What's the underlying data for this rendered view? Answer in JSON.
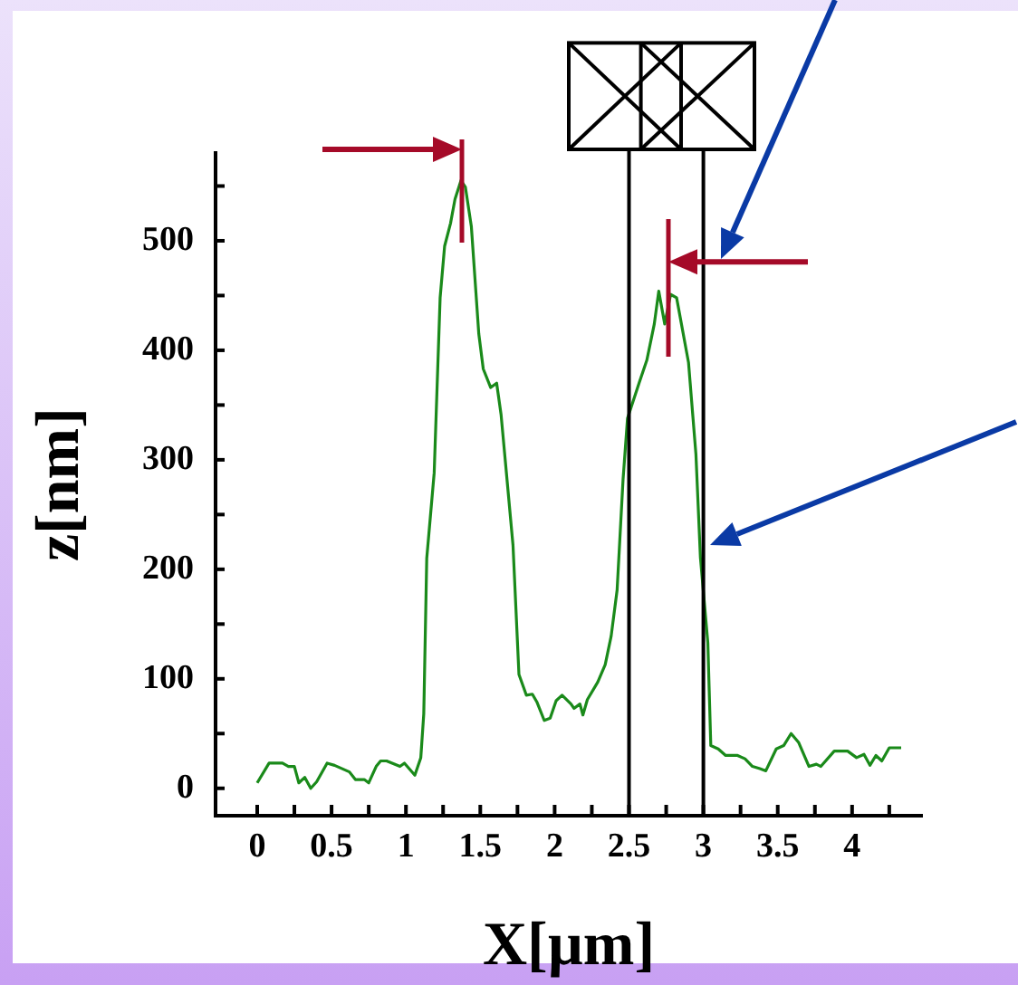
{
  "chart_data": {
    "type": "line",
    "xlabel": "X[µm]",
    "ylabel": "z[nm]",
    "xlim": [
      -0.28,
      4.47
    ],
    "ylim": [
      -25,
      580
    ],
    "xticks": [
      0,
      {
        "value": 0.25,
        "label": null
      },
      0.5,
      {
        "value": 0.75,
        "label": null
      },
      1,
      {
        "value": 1.25,
        "label": null
      },
      1.5,
      {
        "value": 1.75,
        "label": null
      },
      2,
      {
        "value": 2.25,
        "label": null
      },
      2.5,
      {
        "value": 2.75,
        "label": null
      },
      3,
      {
        "value": 3.25,
        "label": null
      },
      3.5,
      {
        "value": 3.75,
        "label": null
      },
      4,
      {
        "value": 4.25,
        "label": null
      }
    ],
    "yticks": [
      0,
      {
        "value": 50,
        "label": null
      },
      100,
      {
        "value": 150,
        "label": null
      },
      200,
      {
        "value": 250,
        "label": null
      },
      300,
      {
        "value": 350,
        "label": null
      },
      400,
      {
        "value": 450,
        "label": null
      },
      500,
      {
        "value": 550,
        "label": null
      }
    ],
    "grid": false,
    "legend": false,
    "marker": "none",
    "line_style": "solid",
    "ref_lines": [
      {
        "axis": "x",
        "value": 2.5,
        "color": "#000000"
      },
      {
        "axis": "x",
        "value": 3,
        "color": "#000000"
      }
    ],
    "series": [
      {
        "color": "#1a8a1a",
        "x": [
          0.0,
          0.08,
          0.17,
          0.21,
          0.25,
          0.28,
          0.32,
          0.36,
          0.4,
          0.47,
          0.52,
          0.62,
          0.66,
          0.72,
          0.75,
          0.8,
          0.83,
          0.87,
          0.96,
          0.99,
          1.06,
          1.1,
          1.12,
          1.14,
          1.19,
          1.23,
          1.26,
          1.3,
          1.33,
          1.37,
          1.4,
          1.44,
          1.49,
          1.52,
          1.57,
          1.61,
          1.64,
          1.72,
          1.76,
          1.81,
          1.85,
          1.88,
          1.93,
          1.97,
          2.01,
          2.05,
          2.11,
          2.13,
          2.17,
          2.19,
          2.22,
          2.29,
          2.34,
          2.38,
          2.42,
          2.46,
          2.49,
          2.57,
          2.62,
          2.67,
          2.7,
          2.74,
          2.78,
          2.82,
          2.9,
          2.95,
          2.98,
          3.03,
          3.05,
          3.1,
          3.15,
          3.23,
          3.28,
          3.33,
          3.38,
          3.42,
          3.49,
          3.54,
          3.59,
          3.64,
          3.71,
          3.76,
          3.79,
          3.88,
          3.97,
          4.03,
          4.08,
          4.12,
          4.16,
          4.2,
          4.25,
          4.33
        ],
        "values": [
          5,
          23,
          23,
          20,
          20,
          5,
          10,
          0,
          6,
          23,
          21,
          15,
          8,
          8,
          5,
          20,
          25,
          25,
          20,
          23,
          12,
          28,
          68,
          210,
          288,
          448,
          495,
          516,
          538,
          555,
          549,
          513,
          415,
          383,
          366,
          370,
          341,
          222,
          104,
          85,
          86,
          79,
          62,
          64,
          80,
          85,
          77,
          73,
          77,
          67,
          81,
          97,
          113,
          139,
          181,
          282,
          338,
          371,
          391,
          424,
          454,
          424,
          451,
          448,
          389,
          305,
          211,
          133,
          39,
          36,
          30,
          30,
          27,
          20,
          18,
          16,
          36,
          39,
          50,
          42,
          20,
          22,
          20,
          34,
          34,
          28,
          31,
          21,
          30,
          25,
          37,
          37
        ]
      }
    ]
  }
}
